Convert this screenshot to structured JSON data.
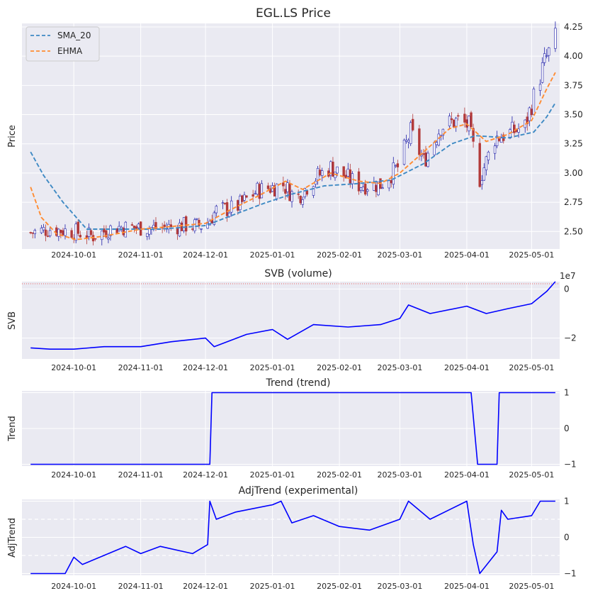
{
  "chart_data": [
    {
      "type": "candlestick",
      "title": "EGL.LS Price",
      "ylabel": "Price",
      "ylim": [
        2.35,
        4.28
      ],
      "y_ticks": [
        "2.50",
        "2.75",
        "3.00",
        "3.25",
        "3.50",
        "3.75",
        "4.00",
        "4.25"
      ],
      "x_ticks": [
        "2024-10-01",
        "2024-11-01",
        "2024-12-01",
        "2025-01-01",
        "2025-02-01",
        "2025-03-01",
        "2025-04-01",
        "2025-05-01"
      ],
      "x_range": [
        "2024-09-07",
        "2025-05-14"
      ],
      "candle_colors": {
        "up": "#1f1fa8",
        "down": "#b33a3a"
      },
      "legend": {
        "position": "upper-left",
        "entries": [
          {
            "name": "SMA_20",
            "color": "#3f8ac4",
            "style": "dashed"
          },
          {
            "name": "EHMA",
            "color": "#ff8c33",
            "style": "dashed"
          }
        ]
      },
      "close_anchors": [
        [
          "2024-09-11",
          2.49
        ],
        [
          "2024-09-20",
          2.52
        ],
        [
          "2024-10-01",
          2.5
        ],
        [
          "2024-10-10",
          2.46
        ],
        [
          "2024-10-20",
          2.54
        ],
        [
          "2024-11-01",
          2.53
        ],
        [
          "2024-11-10",
          2.53
        ],
        [
          "2024-11-20",
          2.55
        ],
        [
          "2024-12-01",
          2.55
        ],
        [
          "2024-12-06",
          2.68
        ],
        [
          "2024-12-15",
          2.7
        ],
        [
          "2024-12-25",
          2.85
        ],
        [
          "2025-01-06",
          2.9
        ],
        [
          "2025-01-12",
          2.78
        ],
        [
          "2025-01-20",
          2.95
        ],
        [
          "2025-01-28",
          3.05
        ],
        [
          "2025-02-03",
          2.98
        ],
        [
          "2025-02-10",
          2.9
        ],
        [
          "2025-02-20",
          2.9
        ],
        [
          "2025-02-28",
          3.05
        ],
        [
          "2025-03-06",
          3.35
        ],
        [
          "2025-03-12",
          3.1
        ],
        [
          "2025-03-20",
          3.4
        ],
        [
          "2025-03-28",
          3.45
        ],
        [
          "2025-04-02",
          3.4
        ],
        [
          "2025-04-07",
          2.95
        ],
        [
          "2025-04-14",
          3.3
        ],
        [
          "2025-04-22",
          3.35
        ],
        [
          "2025-04-28",
          3.4
        ],
        [
          "2025-05-02",
          3.65
        ],
        [
          "2025-05-07",
          3.95
        ],
        [
          "2025-05-12",
          4.15
        ]
      ],
      "series": [
        {
          "name": "SMA_20",
          "points": [
            [
              "2024-09-11",
              3.18
            ],
            [
              "2024-09-17",
              2.98
            ],
            [
              "2024-09-26",
              2.75
            ],
            [
              "2024-10-07",
              2.52
            ],
            [
              "2024-10-20",
              2.52
            ],
            [
              "2024-11-10",
              2.52
            ],
            [
              "2024-12-01",
              2.55
            ],
            [
              "2024-12-15",
              2.65
            ],
            [
              "2024-12-28",
              2.74
            ],
            [
              "2025-01-10",
              2.82
            ],
            [
              "2025-01-25",
              2.89
            ],
            [
              "2025-02-10",
              2.91
            ],
            [
              "2025-02-25",
              2.94
            ],
            [
              "2025-03-12",
              3.08
            ],
            [
              "2025-03-25",
              3.25
            ],
            [
              "2025-04-05",
              3.32
            ],
            [
              "2025-04-20",
              3.3
            ],
            [
              "2025-05-02",
              3.35
            ],
            [
              "2025-05-08",
              3.48
            ],
            [
              "2025-05-12",
              3.6
            ]
          ]
        },
        {
          "name": "EHMA",
          "points": [
            [
              "2024-09-11",
              2.88
            ],
            [
              "2024-09-16",
              2.62
            ],
            [
              "2024-09-23",
              2.48
            ],
            [
              "2024-10-02",
              2.43
            ],
            [
              "2024-10-15",
              2.46
            ],
            [
              "2024-11-01",
              2.52
            ],
            [
              "2024-11-20",
              2.55
            ],
            [
              "2024-12-01",
              2.57
            ],
            [
              "2024-12-12",
              2.68
            ],
            [
              "2024-12-25",
              2.8
            ],
            [
              "2025-01-07",
              2.93
            ],
            [
              "2025-01-15",
              2.86
            ],
            [
              "2025-01-28",
              3.0
            ],
            [
              "2025-02-10",
              2.93
            ],
            [
              "2025-02-20",
              2.91
            ],
            [
              "2025-03-01",
              3.0
            ],
            [
              "2025-03-12",
              3.18
            ],
            [
              "2025-03-24",
              3.38
            ],
            [
              "2025-04-01",
              3.42
            ],
            [
              "2025-04-10",
              3.27
            ],
            [
              "2025-04-20",
              3.33
            ],
            [
              "2025-05-01",
              3.45
            ],
            [
              "2025-05-08",
              3.72
            ],
            [
              "2025-05-12",
              3.86
            ]
          ]
        }
      ]
    },
    {
      "type": "line",
      "title": "SVB (volume)",
      "ylabel": "SVB",
      "offset_text": "1e7",
      "ylim": [
        -2.85,
        0.3
      ],
      "y_ticks": [
        "0",
        "−2"
      ],
      "x_ticks": [
        "2024-10-01",
        "2024-11-01",
        "2024-12-01",
        "2025-01-01",
        "2025-02-01",
        "2025-03-01",
        "2025-04-01",
        "2025-05-01"
      ],
      "reference_line": {
        "y": 0.3,
        "color": "#ee6666",
        "style": "dotted"
      },
      "series": [
        {
          "name": "",
          "color": "#0000ff",
          "points": [
            [
              "2024-09-11",
              -2.4
            ],
            [
              "2024-09-20",
              -2.45
            ],
            [
              "2024-10-01",
              -2.45
            ],
            [
              "2024-10-15",
              -2.35
            ],
            [
              "2024-11-01",
              -2.35
            ],
            [
              "2024-11-15",
              -2.15
            ],
            [
              "2024-12-01",
              -2.0
            ],
            [
              "2024-12-05",
              -2.35
            ],
            [
              "2024-12-20",
              -1.85
            ],
            [
              "2025-01-01",
              -1.65
            ],
            [
              "2025-01-08",
              -2.05
            ],
            [
              "2025-01-20",
              -1.45
            ],
            [
              "2025-02-05",
              -1.55
            ],
            [
              "2025-02-20",
              -1.45
            ],
            [
              "2025-03-01",
              -1.2
            ],
            [
              "2025-03-05",
              -0.65
            ],
            [
              "2025-03-15",
              -1.0
            ],
            [
              "2025-04-01",
              -0.7
            ],
            [
              "2025-04-10",
              -1.0
            ],
            [
              "2025-04-20",
              -0.8
            ],
            [
              "2025-05-01",
              -0.6
            ],
            [
              "2025-05-08",
              -0.1
            ],
            [
              "2025-05-12",
              0.3
            ]
          ]
        }
      ]
    },
    {
      "type": "line",
      "title": "Trend (trend)",
      "ylabel": "Trend",
      "ylim": [
        -1.05,
        1.05
      ],
      "y_ticks": [
        "1",
        "0",
        "−1"
      ],
      "x_ticks": [
        "2024-10-01",
        "2024-11-01",
        "2024-12-01",
        "2025-01-01",
        "2025-02-01",
        "2025-03-01",
        "2025-04-01",
        "2025-05-01"
      ],
      "series": [
        {
          "name": "",
          "color": "#0000ff",
          "points": [
            [
              "2024-09-11",
              -1
            ],
            [
              "2024-12-03",
              -1
            ],
            [
              "2024-12-04",
              1
            ],
            [
              "2025-04-03",
              1
            ],
            [
              "2025-04-06",
              -1
            ],
            [
              "2025-04-15",
              -1
            ],
            [
              "2025-04-16",
              1
            ],
            [
              "2025-05-12",
              1
            ]
          ]
        }
      ]
    },
    {
      "type": "line",
      "title": "AdjTrend (experimental)",
      "ylabel": "AdjTrend",
      "ylim": [
        -1.05,
        1.05
      ],
      "y_ticks": [
        "1",
        "0",
        "−1"
      ],
      "x_ticks": [
        "2024-10-01",
        "2024-11-01",
        "2024-12-01",
        "2025-01-01",
        "2025-02-01",
        "2025-03-01",
        "2025-04-01",
        "2025-05-01"
      ],
      "hlines": [
        0.5,
        -0.5
      ],
      "series": [
        {
          "name": "",
          "color": "#0000ff",
          "points": [
            [
              "2024-09-11",
              -1.0
            ],
            [
              "2024-09-27",
              -1.0
            ],
            [
              "2024-10-01",
              -0.55
            ],
            [
              "2024-10-05",
              -0.75
            ],
            [
              "2024-10-15",
              -0.5
            ],
            [
              "2024-10-25",
              -0.25
            ],
            [
              "2024-11-01",
              -0.45
            ],
            [
              "2024-11-10",
              -0.25
            ],
            [
              "2024-11-25",
              -0.45
            ],
            [
              "2024-12-02",
              -0.2
            ],
            [
              "2024-12-03",
              1.0
            ],
            [
              "2024-12-06",
              0.5
            ],
            [
              "2024-12-15",
              0.7
            ],
            [
              "2025-01-01",
              0.9
            ],
            [
              "2025-01-05",
              1.0
            ],
            [
              "2025-01-10",
              0.4
            ],
            [
              "2025-01-20",
              0.6
            ],
            [
              "2025-02-01",
              0.3
            ],
            [
              "2025-02-15",
              0.2
            ],
            [
              "2025-03-01",
              0.5
            ],
            [
              "2025-03-05",
              1.0
            ],
            [
              "2025-03-15",
              0.5
            ],
            [
              "2025-04-01",
              1.0
            ],
            [
              "2025-04-04",
              -0.2
            ],
            [
              "2025-04-07",
              -1.0
            ],
            [
              "2025-04-15",
              -0.4
            ],
            [
              "2025-04-17",
              0.75
            ],
            [
              "2025-04-20",
              0.5
            ],
            [
              "2025-05-01",
              0.6
            ],
            [
              "2025-05-05",
              1.0
            ],
            [
              "2025-05-12",
              1.0
            ]
          ]
        }
      ]
    }
  ]
}
